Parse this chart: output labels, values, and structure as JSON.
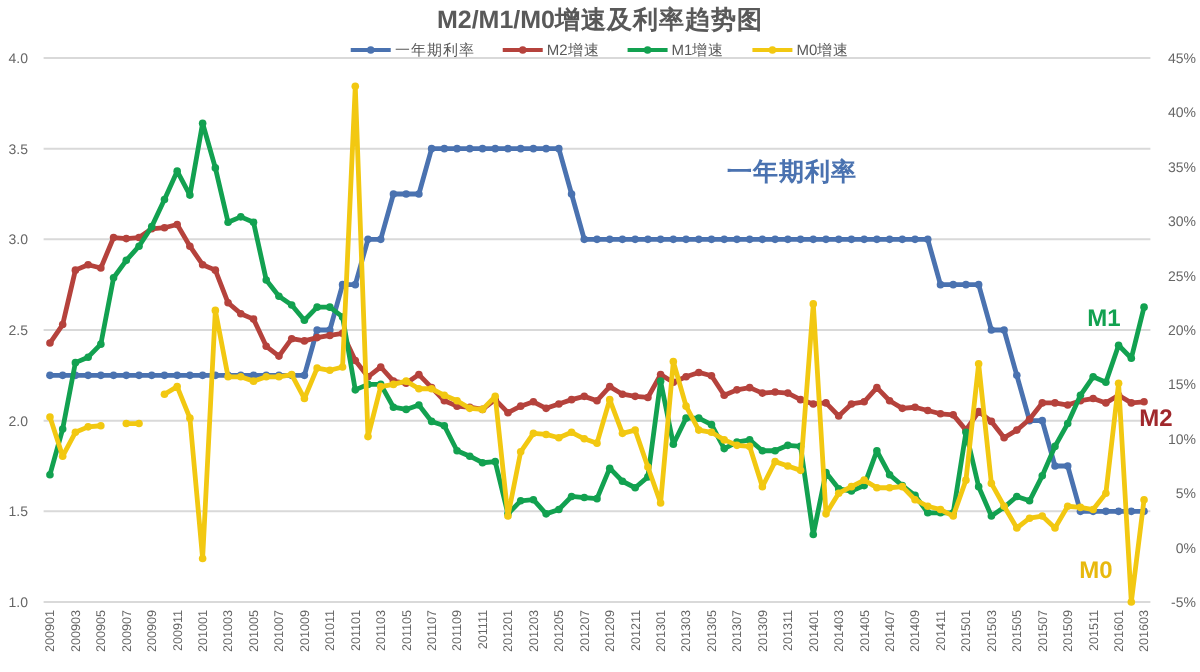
{
  "chart_data": {
    "type": "line",
    "title": "M2/M1/M0增速及利率趋势图",
    "categories": [
      "200901",
      null,
      "200903",
      null,
      "200905",
      null,
      "200907",
      null,
      "200909",
      null,
      "200911",
      null,
      "201001",
      null,
      "201003",
      null,
      "201005",
      null,
      "201007",
      null,
      "201009",
      null,
      "201011",
      null,
      "201101",
      null,
      "201103",
      null,
      "201105",
      null,
      "201107",
      null,
      "201109",
      null,
      "201111",
      null,
      "201201",
      null,
      "201203",
      null,
      "201205",
      null,
      "201207",
      null,
      "201209",
      null,
      "201211",
      null,
      "201301",
      null,
      "201303",
      null,
      "201305",
      null,
      "201307",
      null,
      "201309",
      null,
      "201311",
      null,
      "201401",
      null,
      "201403",
      null,
      "201405",
      null,
      "201407",
      null,
      "201409",
      null,
      "201411",
      null,
      "201501",
      null,
      "201503",
      null,
      "201505",
      null,
      "201507",
      null,
      "201509",
      null,
      "201511",
      null,
      "201601",
      null,
      "201603"
    ],
    "series": [
      {
        "name": "一年期利率",
        "color": "#4a72b0",
        "values": [
          2.25,
          2.25,
          2.25,
          2.25,
          2.25,
          2.25,
          2.25,
          2.25,
          2.25,
          2.25,
          2.25,
          2.25,
          2.25,
          2.25,
          2.25,
          2.25,
          2.25,
          2.25,
          2.25,
          2.25,
          2.25,
          2.5,
          2.5,
          2.75,
          2.75,
          3.0,
          3.0,
          3.25,
          3.25,
          3.25,
          3.5,
          3.5,
          3.5,
          3.5,
          3.5,
          3.5,
          3.5,
          3.5,
          3.5,
          3.5,
          3.5,
          3.25,
          3.0,
          3.0,
          3.0,
          3.0,
          3.0,
          3.0,
          3.0,
          3.0,
          3.0,
          3.0,
          3.0,
          3.0,
          3.0,
          3.0,
          3.0,
          3.0,
          3.0,
          3.0,
          3.0,
          3.0,
          3.0,
          3.0,
          3.0,
          3.0,
          3.0,
          3.0,
          3.0,
          3.0,
          2.75,
          2.75,
          2.75,
          2.75,
          2.5,
          2.5,
          2.25,
          2.0,
          2.0,
          1.75,
          1.75,
          1.5,
          1.5,
          1.5,
          1.5,
          1.5,
          1.5
        ]
      },
      {
        "name": "M2增速",
        "color": "#b5423c",
        "axis": "y2",
        "values": [
          18.8,
          20.5,
          25.5,
          26.0,
          25.7,
          28.5,
          28.4,
          28.5,
          29.3,
          29.4,
          29.7,
          27.7,
          26.0,
          25.5,
          22.5,
          21.5,
          21.0,
          18.5,
          17.6,
          19.2,
          19.0,
          19.3,
          19.5,
          19.7,
          17.2,
          15.7,
          16.6,
          15.3,
          15.1,
          15.9,
          14.7,
          13.5,
          13.0,
          12.9,
          12.7,
          13.6,
          12.4,
          13.0,
          13.4,
          12.8,
          13.2,
          13.6,
          13.9,
          13.5,
          14.8,
          14.1,
          13.9,
          13.8,
          15.9,
          15.2,
          15.7,
          16.1,
          15.8,
          14.0,
          14.5,
          14.7,
          14.2,
          14.3,
          14.2,
          13.6,
          13.2,
          13.3,
          12.1,
          13.2,
          13.4,
          14.7,
          13.5,
          12.8,
          12.9,
          12.6,
          12.3,
          12.2,
          10.8,
          12.5,
          11.6,
          10.1,
          10.8,
          11.8,
          13.3,
          13.3,
          13.1,
          13.5,
          13.7,
          13.3,
          14.0,
          13.3,
          13.4
        ]
      },
      {
        "name": "M1增速",
        "color": "#12a150",
        "axis": "y2",
        "values": [
          6.7,
          10.9,
          17.0,
          17.5,
          18.7,
          24.8,
          26.4,
          27.7,
          29.5,
          32.0,
          34.6,
          32.4,
          39.0,
          34.9,
          29.9,
          30.4,
          29.9,
          24.6,
          23.1,
          22.3,
          20.9,
          22.1,
          22.1,
          21.2,
          14.5,
          15.0,
          15.0,
          12.9,
          12.7,
          13.1,
          11.6,
          11.2,
          8.9,
          8.4,
          7.8,
          7.9,
          3.1,
          4.3,
          4.4,
          3.1,
          3.5,
          4.7,
          4.6,
          4.5,
          7.3,
          6.1,
          5.5,
          6.5,
          15.3,
          9.5,
          11.9,
          11.9,
          11.3,
          9.1,
          9.7,
          9.9,
          8.9,
          8.9,
          9.4,
          9.3,
          1.2,
          6.9,
          5.4,
          5.2,
          5.7,
          8.9,
          6.7,
          5.7,
          4.8,
          3.2,
          3.2,
          3.2,
          10.6,
          5.6,
          2.9,
          3.7,
          4.7,
          4.3,
          6.6,
          9.3,
          11.4,
          14.0,
          15.7,
          15.2,
          18.6,
          17.4,
          22.1
        ]
      },
      {
        "name": "M0增速",
        "color": "#f2c811",
        "axis": "y2",
        "values": [
          12.0,
          8.4,
          10.6,
          11.1,
          11.2,
          null,
          11.4,
          11.4,
          null,
          14.1,
          14.8,
          11.9,
          -1.0,
          21.8,
          15.7,
          15.7,
          15.3,
          15.7,
          15.7,
          15.9,
          13.7,
          16.5,
          16.3,
          16.6,
          42.4,
          10.2,
          14.8,
          15.0,
          15.3,
          14.6,
          14.6,
          14.0,
          13.5,
          12.8,
          12.7,
          13.9,
          2.9,
          8.8,
          10.5,
          10.4,
          10.1,
          10.6,
          10.0,
          9.6,
          13.6,
          10.5,
          10.8,
          7.4,
          4.1,
          17.1,
          13.0,
          10.8,
          10.6,
          9.9,
          9.4,
          9.3,
          5.6,
          7.9,
          7.5,
          7.1,
          22.4,
          3.1,
          5.0,
          5.6,
          6.2,
          5.5,
          5.5,
          5.6,
          4.4,
          3.8,
          3.5,
          2.9,
          6.2,
          16.9,
          5.9,
          3.8,
          1.8,
          2.7,
          2.9,
          1.8,
          3.8,
          3.7,
          3.5,
          5.0,
          15.1,
          -5.0,
          4.4
        ]
      }
    ],
    "ylim": [
      1,
      4
    ],
    "yticks": [
      {
        "value": 1,
        "label": "1.0"
      },
      {
        "value": 1.5,
        "label": "1.5"
      },
      {
        "value": 2,
        "label": "2.0"
      },
      {
        "value": 2.5,
        "label": "2.5"
      },
      {
        "value": 3,
        "label": "3.0"
      },
      {
        "value": 3.5,
        "label": "3.5"
      },
      {
        "value": 4,
        "label": "4.0"
      }
    ],
    "y2lim": [
      -5,
      45
    ],
    "y2ticks": [
      {
        "value": -5,
        "label": "-5%"
      },
      {
        "value": 0,
        "label": "0%"
      },
      {
        "value": 5,
        "label": "5%"
      },
      {
        "value": 10,
        "label": "10%"
      },
      {
        "value": 15,
        "label": "15%"
      },
      {
        "value": 20,
        "label": "20%"
      },
      {
        "value": 25,
        "label": "25%"
      },
      {
        "value": 30,
        "label": "30%"
      },
      {
        "value": 35,
        "label": "35%"
      },
      {
        "value": 40,
        "label": "40%"
      },
      {
        "value": 45,
        "label": "45%"
      }
    ],
    "grid": "y",
    "legend": "top",
    "marker": "circle",
    "line_style": "solid",
    "annotations": [
      "一年期利率",
      "M2",
      "M1",
      "M0"
    ]
  }
}
